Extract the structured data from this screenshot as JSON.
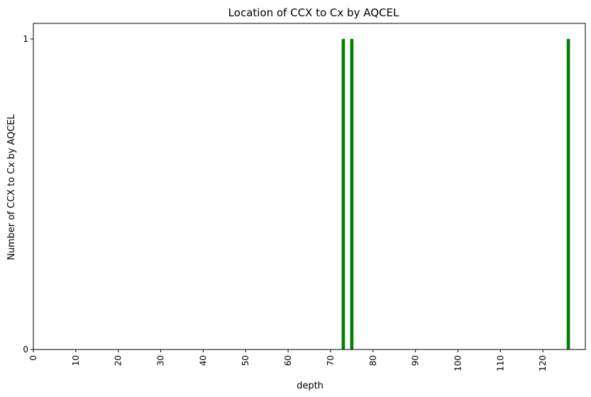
{
  "chart_data": {
    "type": "bar",
    "title": "Location of CCX to Cx by AQCEL",
    "xlabel": "depth",
    "ylabel": "Number of CCX to Cx by AQCEL",
    "xlim": [
      0,
      130
    ],
    "ylim": [
      0,
      1
    ],
    "x_ticks": [
      0,
      10,
      20,
      30,
      40,
      50,
      60,
      70,
      80,
      90,
      100,
      110,
      120
    ],
    "y_ticks": [
      0,
      1
    ],
    "bar_color": "#008000",
    "grid": false,
    "legend": "none",
    "x": [
      73,
      75,
      126
    ],
    "values": [
      1,
      1,
      1
    ]
  }
}
